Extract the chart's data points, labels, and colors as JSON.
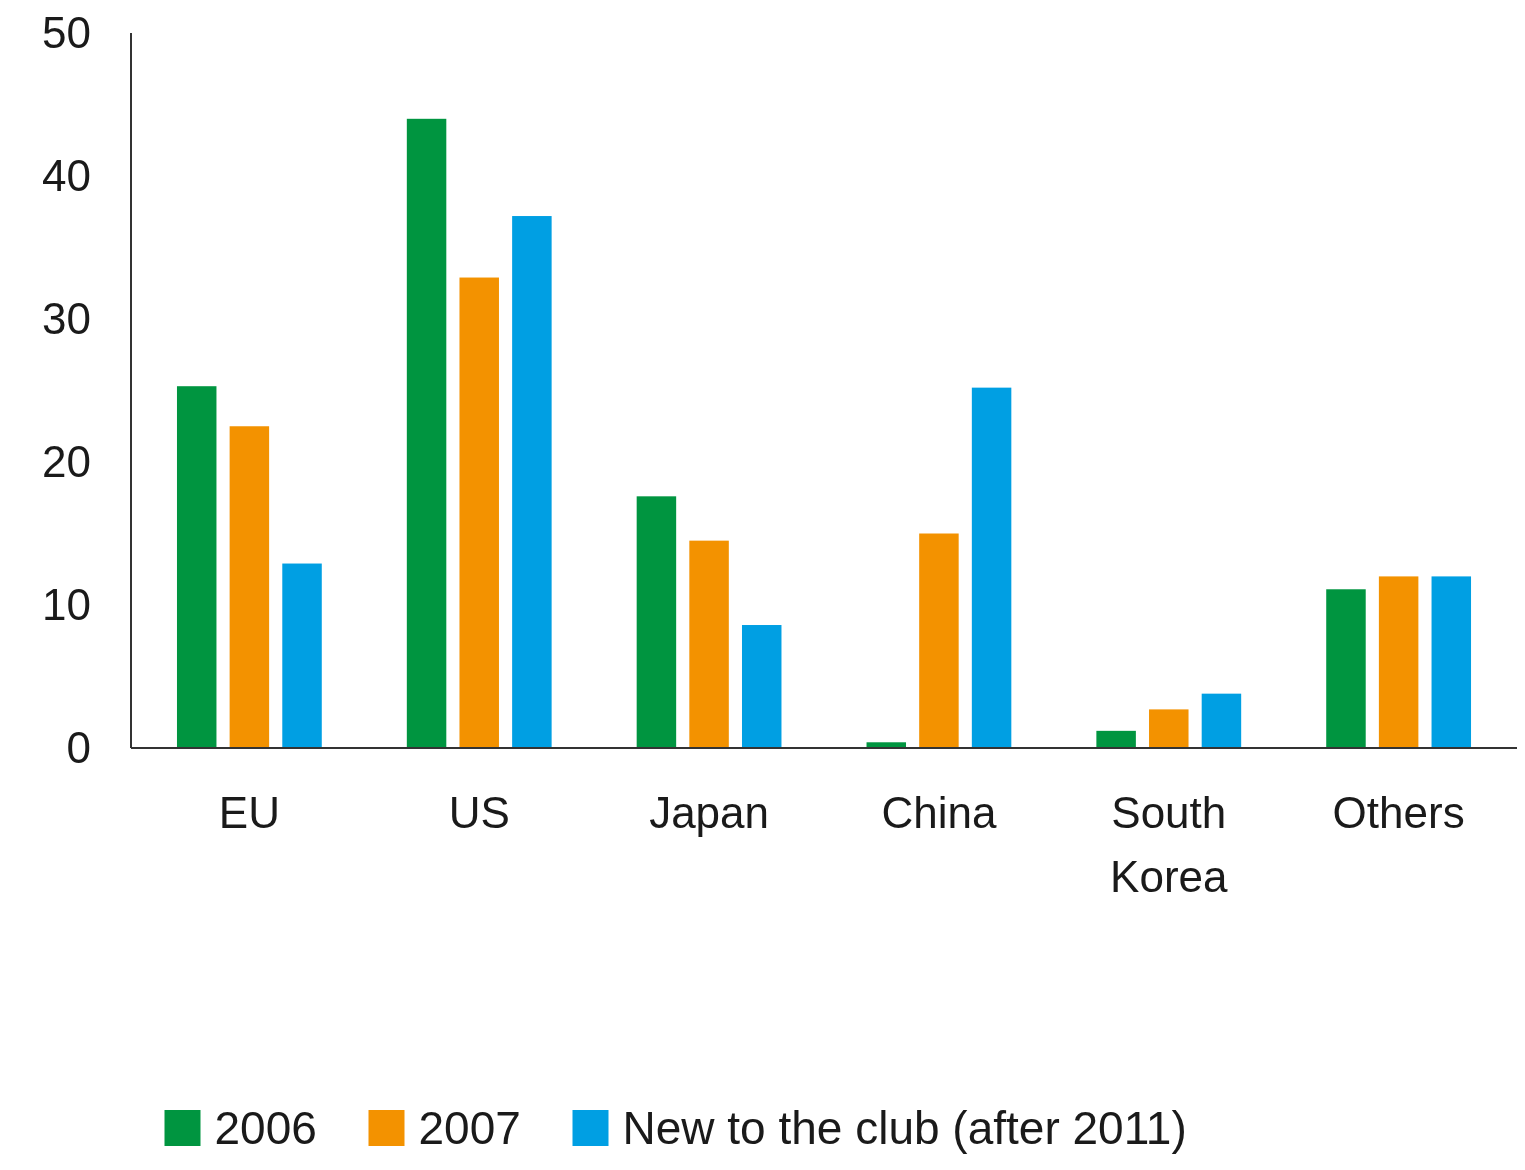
{
  "chart_data": {
    "type": "bar",
    "categories": [
      "EU",
      "US",
      "Japan",
      "China",
      "South Korea",
      "Others"
    ],
    "series": [
      {
        "name": "2006",
        "color": "#009540",
        "values": [
          25.3,
          44.0,
          17.6,
          0.4,
          1.2,
          11.1
        ]
      },
      {
        "name": "2007",
        "color": "#f39200",
        "values": [
          22.5,
          32.9,
          14.5,
          15.0,
          2.7,
          12.0
        ]
      },
      {
        "name": "New to the club (after 2011)",
        "color": "#009fe3",
        "values": [
          12.9,
          37.2,
          8.6,
          25.2,
          3.8,
          12.0
        ]
      }
    ],
    "ylim": [
      0,
      50
    ],
    "yticks": [
      0,
      10,
      20,
      30,
      40,
      50
    ],
    "grid": false,
    "legend": "bottom"
  }
}
